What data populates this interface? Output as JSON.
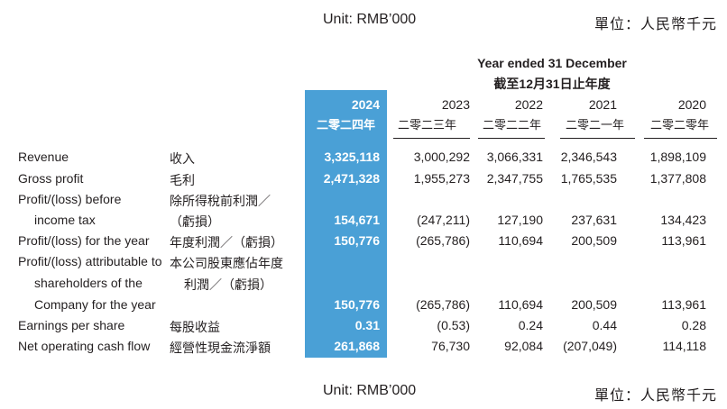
{
  "unit": {
    "en": "Unit: RMB’000",
    "zh": "單位：人民幣千元"
  },
  "period": {
    "en": "Year ended 31 December",
    "zh": "截至12月31日止年度"
  },
  "colors": {
    "highlight": "#4aa0d6",
    "text": "#231f20"
  },
  "years": [
    {
      "en": "2024",
      "zh": "二零二四年"
    },
    {
      "en": "2023",
      "zh": "二零二三年"
    },
    {
      "en": "2022",
      "zh": "二零二二年"
    },
    {
      "en": "2021",
      "zh": "二零二一年"
    },
    {
      "en": "2020",
      "zh": "二零二零年"
    }
  ],
  "rows": [
    {
      "en": [
        "Revenue"
      ],
      "zh": [
        "收入"
      ],
      "values": [
        "3,325,118",
        "3,000,292",
        "3,066,331",
        "2,346,543",
        "1,898,109"
      ]
    },
    {
      "en": [
        "Gross profit"
      ],
      "zh": [
        "毛利"
      ],
      "values": [
        "2,471,328",
        "1,955,273",
        "2,347,755",
        "1,765,535",
        "1,377,808"
      ]
    },
    {
      "en": [
        "Profit/(loss) before",
        "income tax"
      ],
      "zh": [
        "除所得稅前利潤／",
        "（虧損）"
      ],
      "values": [
        "154,671",
        "(247,211)",
        "127,190",
        "237,631",
        "134,423"
      ]
    },
    {
      "en": [
        "Profit/(loss) for the year"
      ],
      "zh": [
        "年度利潤／（虧損）"
      ],
      "values": [
        "150,776",
        "(265,786)",
        "110,694",
        "200,509",
        "113,961"
      ]
    },
    {
      "en": [
        "Profit/(loss) attributable to",
        "shareholders of the",
        "Company for the year"
      ],
      "zh": [
        "本公司股東應佔年度",
        "利潤／（虧損）"
      ],
      "values": [
        "150,776",
        "(265,786)",
        "110,694",
        "200,509",
        "113,961"
      ]
    },
    {
      "en": [
        "Earnings per share"
      ],
      "zh": [
        "每股收益"
      ],
      "values": [
        "0.31",
        "(0.53)",
        "0.24",
        "0.44",
        "0.28"
      ]
    },
    {
      "en": [
        "Net operating cash flow"
      ],
      "zh": [
        "經營性現金流淨額"
      ],
      "values": [
        "261,868",
        "76,730",
        "92,084",
        "(207,049)",
        "114,118"
      ]
    }
  ]
}
